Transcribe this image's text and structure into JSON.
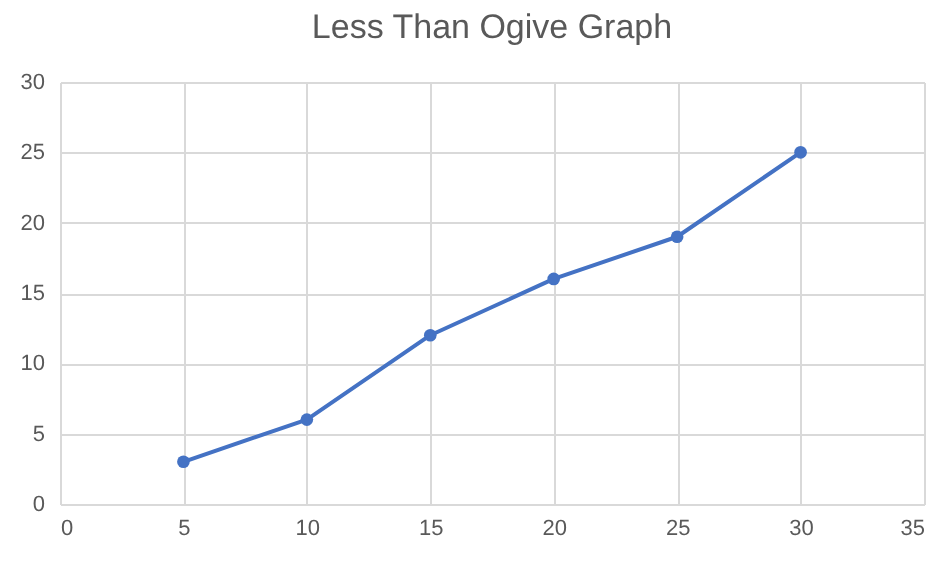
{
  "chart_data": {
    "type": "line",
    "title": "Less Than Ogive Graph",
    "x": [
      5,
      10,
      15,
      20,
      25,
      30
    ],
    "series": [
      {
        "color": "#4472c4",
        "values": [
          3,
          6,
          12,
          16,
          19,
          25
        ]
      }
    ],
    "xlim": [
      0,
      35
    ],
    "xticks": [
      0,
      5,
      10,
      15,
      20,
      25,
      30,
      35
    ],
    "ylim": [
      0,
      30
    ],
    "yticks": [
      0,
      5,
      10,
      15,
      20,
      25,
      30
    ],
    "grid": true,
    "marker": "circle",
    "line_style": "solid"
  }
}
